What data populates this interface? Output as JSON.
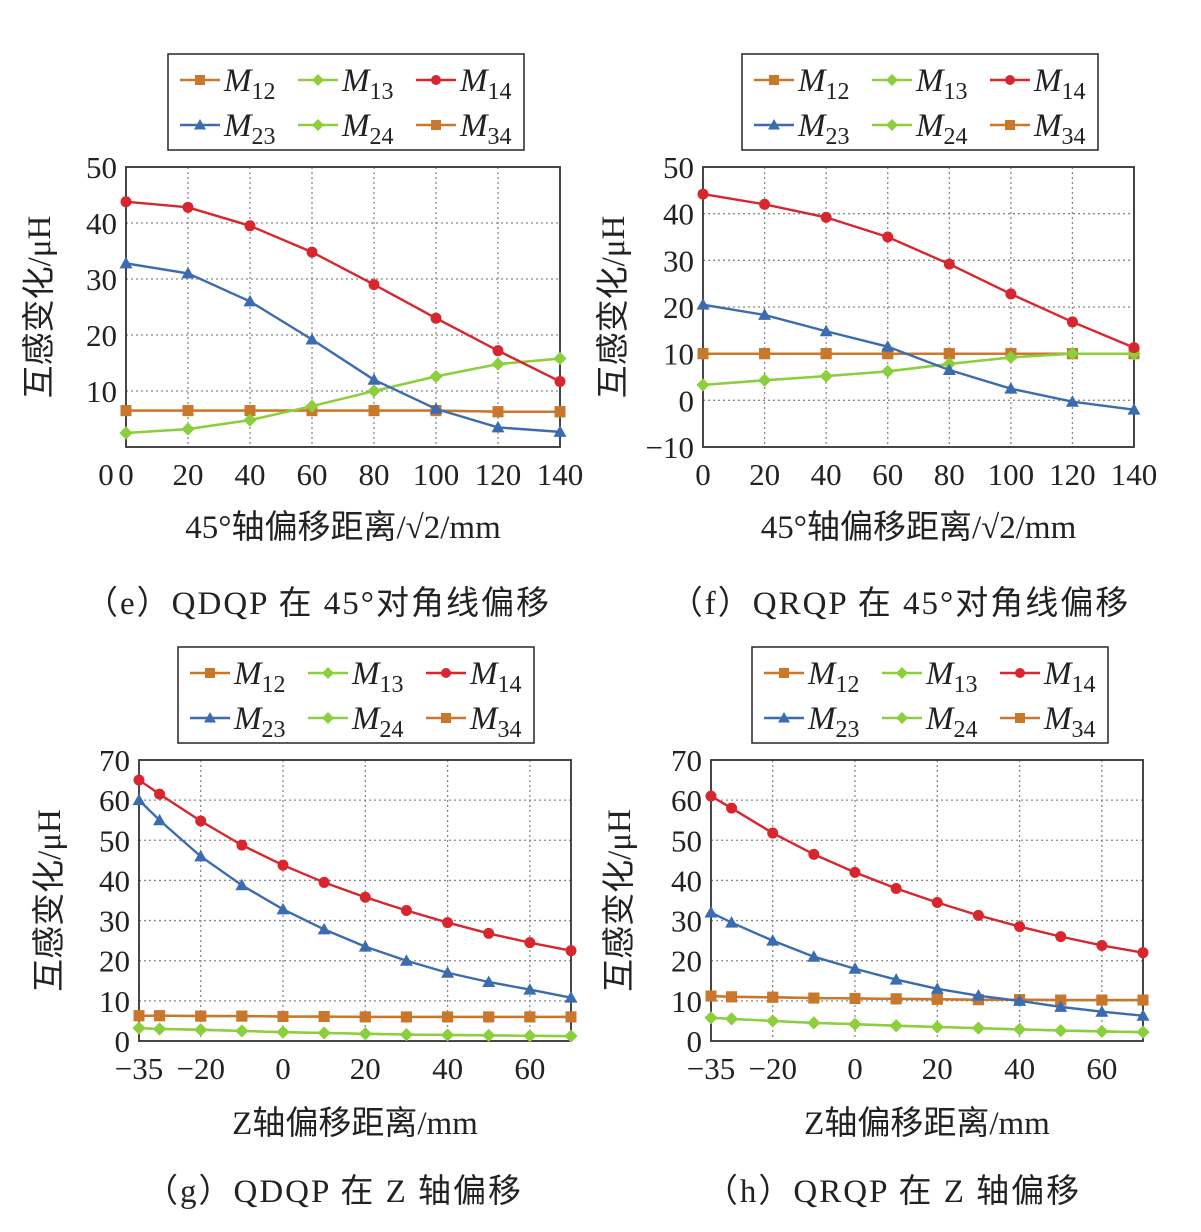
{
  "chart_data": [
    {
      "type": "line",
      "caption": "（e）QDQP 在 45°对角线偏移",
      "xlabel": "45°轴偏移距离/√2/mm",
      "ylabel": "互感变化/μH",
      "x": [
        0,
        20,
        40,
        60,
        80,
        100,
        120,
        140
      ],
      "xticks": [
        0,
        20,
        40,
        60,
        80,
        100,
        120,
        140
      ],
      "xlim": [
        0,
        140
      ],
      "yticks": [
        10,
        20,
        30,
        40,
        50
      ],
      "ylim": [
        0,
        50
      ],
      "grid": true,
      "legend": "top",
      "series": [
        {
          "name": "M12",
          "base": "M",
          "sub": "12",
          "color": "#c9772a",
          "marker": "square",
          "values": [
            6.5,
            6.5,
            6.5,
            6.5,
            6.5,
            6.5,
            6.3,
            6.3
          ]
        },
        {
          "name": "M13",
          "base": "M",
          "sub": "13",
          "color": "#8ccf3c",
          "marker": "diamond",
          "values": [
            2.5,
            3.2,
            4.8,
            7.3,
            10.0,
            12.6,
            14.8,
            15.8
          ]
        },
        {
          "name": "M14",
          "base": "M",
          "sub": "14",
          "color": "#d8262f",
          "marker": "circle",
          "values": [
            43.8,
            42.8,
            39.5,
            34.8,
            29.0,
            23.0,
            17.2,
            11.7
          ]
        },
        {
          "name": "M23",
          "base": "M",
          "sub": "23",
          "color": "#3c6cb0",
          "marker": "triangle",
          "values": [
            32.8,
            31.0,
            26.0,
            19.2,
            12.0,
            6.8,
            3.5,
            2.7
          ]
        },
        {
          "name": "M24",
          "base": "M",
          "sub": "24",
          "color": "#8ccf3c",
          "marker": "diamond",
          "values": [
            2.5,
            3.2,
            4.8,
            7.3,
            10.0,
            12.6,
            14.8,
            15.8
          ]
        },
        {
          "name": "M34",
          "base": "M",
          "sub": "34",
          "color": "#c9772a",
          "marker": "square",
          "values": [
            6.5,
            6.5,
            6.5,
            6.5,
            6.5,
            6.5,
            6.3,
            6.3
          ]
        }
      ]
    },
    {
      "type": "line",
      "caption": "（f）QRQP 在 45°对角线偏移",
      "xlabel": "45°轴偏移距离/√2/mm",
      "ylabel": "互感变化/μH",
      "x": [
        0,
        20,
        40,
        60,
        80,
        100,
        120,
        140
      ],
      "xticks": [
        0,
        20,
        40,
        60,
        80,
        100,
        120,
        140
      ],
      "xlim": [
        0,
        140
      ],
      "yticks": [
        -10,
        0,
        10,
        20,
        30,
        40,
        50
      ],
      "ylim": [
        -10,
        50
      ],
      "grid": true,
      "legend": "top",
      "series": [
        {
          "name": "M12",
          "base": "M",
          "sub": "12",
          "color": "#c9772a",
          "marker": "square",
          "values": [
            10.0,
            10.0,
            10.0,
            10.0,
            10.0,
            10.0,
            10.0,
            10.0
          ]
        },
        {
          "name": "M13",
          "base": "M",
          "sub": "13",
          "color": "#8ccf3c",
          "marker": "diamond",
          "values": [
            3.3,
            4.3,
            5.2,
            6.2,
            7.8,
            9.2,
            10.0,
            10.0
          ]
        },
        {
          "name": "M14",
          "base": "M",
          "sub": "14",
          "color": "#d8262f",
          "marker": "circle",
          "values": [
            44.2,
            42.0,
            39.2,
            35.0,
            29.2,
            22.8,
            16.8,
            11.3
          ]
        },
        {
          "name": "M23",
          "base": "M",
          "sub": "23",
          "color": "#3c6cb0",
          "marker": "triangle",
          "values": [
            20.5,
            18.3,
            14.8,
            11.5,
            6.5,
            2.5,
            -0.3,
            -2.0
          ]
        },
        {
          "name": "M24",
          "base": "M",
          "sub": "24",
          "color": "#8ccf3c",
          "marker": "diamond",
          "values": [
            3.3,
            4.3,
            5.2,
            6.2,
            7.8,
            9.2,
            10.0,
            10.0
          ]
        },
        {
          "name": "M34",
          "base": "M",
          "sub": "34",
          "color": "#c9772a",
          "marker": "square",
          "values": [
            10.0,
            10.0,
            10.0,
            10.0,
            10.0,
            10.0,
            10.0,
            10.0
          ]
        }
      ]
    },
    {
      "type": "line",
      "caption": "（g）QDQP 在 Z 轴偏移",
      "xlabel": "Z轴偏移距离/mm",
      "ylabel": "互感变化/μH",
      "x": [
        -35,
        -30,
        -20,
        -10,
        0,
        10,
        20,
        30,
        40,
        50,
        60,
        70
      ],
      "xticks": [
        -35,
        -20,
        0,
        20,
        40,
        60
      ],
      "xtick_labels": [
        "−35",
        "−20",
        "0",
        "20",
        "40",
        "60"
      ],
      "xlim": [
        -35,
        70
      ],
      "yticks": [
        0,
        10,
        20,
        30,
        40,
        50,
        60,
        70
      ],
      "ylim": [
        0,
        70
      ],
      "grid": true,
      "legend": "top",
      "series": [
        {
          "name": "M12",
          "base": "M",
          "sub": "12",
          "color": "#c9772a",
          "marker": "square",
          "values": [
            6.3,
            6.3,
            6.2,
            6.2,
            6.1,
            6.1,
            6.0,
            6.0,
            6.0,
            6.0,
            6.0,
            6.0
          ]
        },
        {
          "name": "M13",
          "base": "M",
          "sub": "13",
          "color": "#8ccf3c",
          "marker": "diamond",
          "values": [
            3.2,
            3.0,
            2.8,
            2.5,
            2.2,
            2.0,
            1.8,
            1.6,
            1.5,
            1.4,
            1.3,
            1.2
          ]
        },
        {
          "name": "M14",
          "base": "M",
          "sub": "14",
          "color": "#d8262f",
          "marker": "circle",
          "values": [
            65.0,
            61.5,
            54.8,
            48.8,
            43.8,
            39.5,
            35.8,
            32.5,
            29.5,
            26.8,
            24.5,
            22.5
          ]
        },
        {
          "name": "M23",
          "base": "M",
          "sub": "23",
          "color": "#3c6cb0",
          "marker": "triangle",
          "values": [
            60.0,
            55.0,
            46.0,
            38.8,
            32.8,
            27.8,
            23.5,
            20.0,
            17.0,
            14.7,
            12.8,
            10.8
          ]
        },
        {
          "name": "M24",
          "base": "M",
          "sub": "24",
          "color": "#8ccf3c",
          "marker": "diamond",
          "values": [
            3.2,
            3.0,
            2.8,
            2.5,
            2.2,
            2.0,
            1.8,
            1.6,
            1.5,
            1.4,
            1.3,
            1.2
          ]
        },
        {
          "name": "M34",
          "base": "M",
          "sub": "34",
          "color": "#c9772a",
          "marker": "square",
          "values": [
            6.3,
            6.3,
            6.2,
            6.2,
            6.1,
            6.1,
            6.0,
            6.0,
            6.0,
            6.0,
            6.0,
            6.0
          ]
        }
      ]
    },
    {
      "type": "line",
      "caption": "（h）QRQP 在 Z 轴偏移",
      "xlabel": "Z轴偏移距离/mm",
      "ylabel": "互感变化/μH",
      "x": [
        -35,
        -30,
        -20,
        -10,
        0,
        10,
        20,
        30,
        40,
        50,
        60,
        70
      ],
      "xticks": [
        -35,
        -20,
        0,
        20,
        40,
        60
      ],
      "xtick_labels": [
        "−35",
        "−20",
        "0",
        "20",
        "40",
        "60"
      ],
      "xlim": [
        -35,
        70
      ],
      "yticks": [
        0,
        10,
        20,
        30,
        40,
        50,
        60,
        70
      ],
      "ylim": [
        0,
        70
      ],
      "grid": true,
      "legend": "top",
      "series": [
        {
          "name": "M12",
          "base": "M",
          "sub": "12",
          "color": "#c9772a",
          "marker": "square",
          "values": [
            11.2,
            11.0,
            10.9,
            10.7,
            10.6,
            10.5,
            10.4,
            10.3,
            10.3,
            10.2,
            10.2,
            10.2
          ]
        },
        {
          "name": "M13",
          "base": "M",
          "sub": "13",
          "color": "#8ccf3c",
          "marker": "diamond",
          "values": [
            5.8,
            5.5,
            5.0,
            4.5,
            4.2,
            3.8,
            3.5,
            3.2,
            2.9,
            2.6,
            2.4,
            2.2
          ]
        },
        {
          "name": "M14",
          "base": "M",
          "sub": "14",
          "color": "#d8262f",
          "marker": "circle",
          "values": [
            61.0,
            58.0,
            51.8,
            46.5,
            42.0,
            38.0,
            34.5,
            31.3,
            28.5,
            26.0,
            23.8,
            22.0
          ]
        },
        {
          "name": "M23",
          "base": "M",
          "sub": "23",
          "color": "#3c6cb0",
          "marker": "triangle",
          "values": [
            32.0,
            29.5,
            25.0,
            21.0,
            18.0,
            15.3,
            13.0,
            11.3,
            10.0,
            8.5,
            7.3,
            6.3
          ]
        },
        {
          "name": "M24",
          "base": "M",
          "sub": "24",
          "color": "#8ccf3c",
          "marker": "diamond",
          "values": [
            5.8,
            5.5,
            5.0,
            4.5,
            4.2,
            3.8,
            3.5,
            3.2,
            2.9,
            2.6,
            2.4,
            2.2
          ]
        },
        {
          "name": "M34",
          "base": "M",
          "sub": "34",
          "color": "#c9772a",
          "marker": "square",
          "values": [
            11.2,
            11.0,
            10.9,
            10.7,
            10.6,
            10.5,
            10.4,
            10.3,
            10.3,
            10.2,
            10.2,
            10.2
          ]
        }
      ]
    }
  ]
}
